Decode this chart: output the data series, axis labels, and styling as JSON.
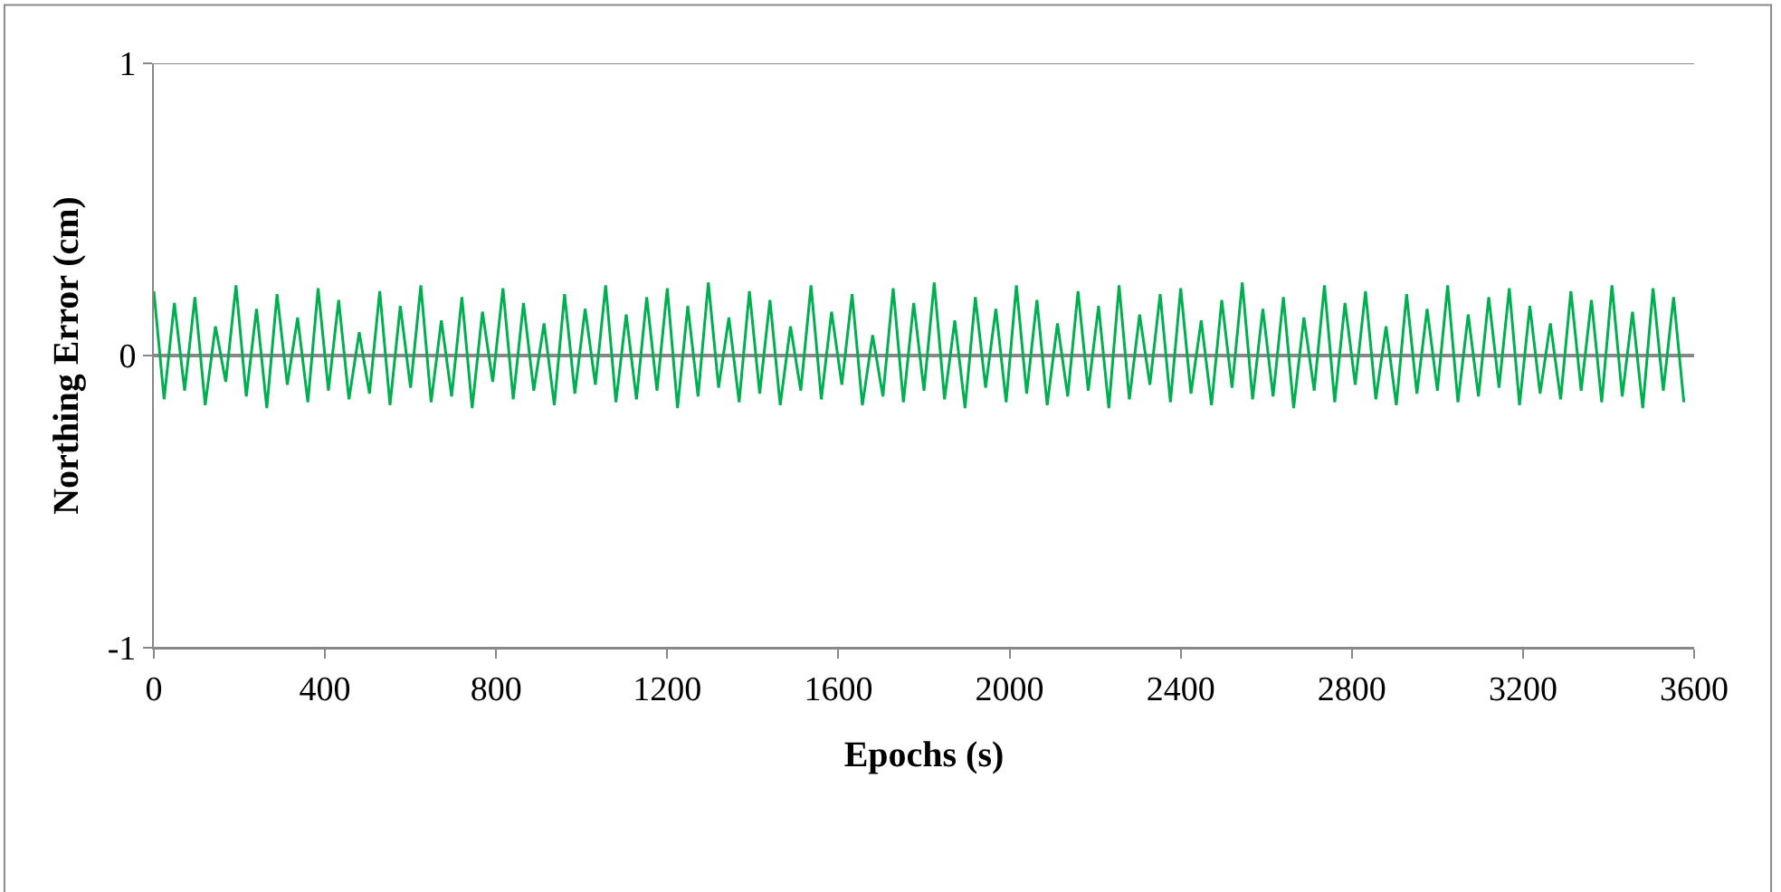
{
  "chart_data": {
    "type": "line",
    "xlabel": "Epochs (s)",
    "ylabel": "Northing Error (cm)",
    "xlim": [
      0,
      3600
    ],
    "xticks": [
      0,
      400,
      800,
      1200,
      1600,
      2000,
      2400,
      2800,
      3200,
      3600
    ],
    "ylim": [
      -1,
      1
    ],
    "yticks": [
      -1,
      0,
      1
    ],
    "grid": "y",
    "marker": "none",
    "line_style": "solid",
    "x": [
      0,
      24,
      48,
      72,
      96,
      120,
      144,
      168,
      192,
      216,
      240,
      264,
      288,
      312,
      336,
      360,
      384,
      408,
      432,
      456,
      480,
      504,
      528,
      552,
      576,
      600,
      624,
      648,
      672,
      696,
      720,
      744,
      768,
      792,
      816,
      840,
      864,
      888,
      912,
      936,
      960,
      984,
      1008,
      1032,
      1056,
      1080,
      1104,
      1128,
      1152,
      1176,
      1200,
      1224,
      1248,
      1272,
      1296,
      1320,
      1344,
      1368,
      1392,
      1416,
      1440,
      1464,
      1488,
      1512,
      1536,
      1560,
      1584,
      1608,
      1632,
      1656,
      1680,
      1704,
      1728,
      1752,
      1776,
      1800,
      1824,
      1848,
      1872,
      1896,
      1920,
      1944,
      1968,
      1992,
      2016,
      2040,
      2064,
      2088,
      2112,
      2136,
      2160,
      2184,
      2208,
      2232,
      2256,
      2280,
      2304,
      2328,
      2352,
      2376,
      2400,
      2424,
      2448,
      2472,
      2496,
      2520,
      2544,
      2568,
      2592,
      2616,
      2640,
      2664,
      2688,
      2712,
      2736,
      2760,
      2784,
      2808,
      2832,
      2856,
      2880,
      2904,
      2928,
      2952,
      2976,
      3000,
      3024,
      3048,
      3072,
      3096,
      3120,
      3144,
      3168,
      3192,
      3216,
      3240,
      3264,
      3288,
      3312,
      3336,
      3360,
      3384,
      3408,
      3432,
      3456,
      3480,
      3504,
      3528,
      3552,
      3576
    ],
    "series": [
      {
        "color": "#00b050",
        "values": [
          0.22,
          -0.15,
          0.18,
          -0.12,
          0.2,
          -0.17,
          0.1,
          -0.09,
          0.24,
          -0.14,
          0.16,
          -0.18,
          0.21,
          -0.1,
          0.13,
          -0.16,
          0.23,
          -0.12,
          0.19,
          -0.15,
          0.08,
          -0.13,
          0.22,
          -0.17,
          0.17,
          -0.11,
          0.24,
          -0.16,
          0.12,
          -0.14,
          0.2,
          -0.18,
          0.15,
          -0.09,
          0.23,
          -0.15,
          0.18,
          -0.12,
          0.11,
          -0.17,
          0.21,
          -0.13,
          0.16,
          -0.1,
          0.24,
          -0.16,
          0.14,
          -0.15,
          0.2,
          -0.12,
          0.23,
          -0.18,
          0.17,
          -0.14,
          0.25,
          -0.11,
          0.13,
          -0.16,
          0.22,
          -0.13,
          0.19,
          -0.17,
          0.1,
          -0.12,
          0.24,
          -0.15,
          0.15,
          -0.1,
          0.21,
          -0.17,
          0.07,
          -0.14,
          0.23,
          -0.16,
          0.18,
          -0.12,
          0.25,
          -0.15,
          0.12,
          -0.18,
          0.2,
          -0.11,
          0.16,
          -0.16,
          0.24,
          -0.13,
          0.19,
          -0.17,
          0.11,
          -0.14,
          0.22,
          -0.12,
          0.17,
          -0.18,
          0.24,
          -0.15,
          0.14,
          -0.1,
          0.21,
          -0.16,
          0.23,
          -0.13,
          0.12,
          -0.17,
          0.19,
          -0.11,
          0.25,
          -0.15,
          0.16,
          -0.14,
          0.2,
          -0.18,
          0.13,
          -0.12,
          0.24,
          -0.16,
          0.18,
          -0.1,
          0.22,
          -0.15,
          0.1,
          -0.17,
          0.21,
          -0.13,
          0.16,
          -0.12,
          0.24,
          -0.16,
          0.14,
          -0.14,
          0.2,
          -0.11,
          0.23,
          -0.17,
          0.17,
          -0.13,
          0.11,
          -0.15,
          0.22,
          -0.12,
          0.19,
          -0.16,
          0.24,
          -0.14,
          0.15,
          -0.18,
          0.23,
          -0.12,
          0.2,
          -0.16
        ]
      }
    ]
  }
}
